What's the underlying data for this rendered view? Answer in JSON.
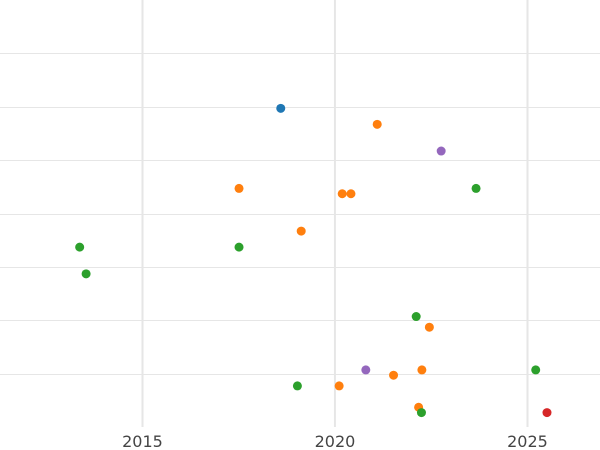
{
  "chart_data": {
    "type": "scatter",
    "title": "",
    "xlabel": "",
    "ylabel": "",
    "grid": true,
    "legend": false,
    "xaxis": {
      "type": "date",
      "range": [
        "2011-04-20",
        "2026-11-20"
      ],
      "ticks": [
        "2015",
        "2020",
        "2025"
      ]
    },
    "yaxis": {
      "range": [
        0,
        8
      ],
      "ticks": [
        1,
        2,
        3,
        4,
        5,
        6,
        7
      ],
      "tick_labels_shown": false
    },
    "series": [
      {
        "color": "#1f77b4",
        "points": [
          {
            "x": "2018-08-05",
            "y": 5.97
          }
        ]
      },
      {
        "color": "#ff7f0e",
        "points": [
          {
            "x": "2021-02-05",
            "y": 5.67
          },
          {
            "x": "2017-07-05",
            "y": 4.47
          },
          {
            "x": "2020-03-10",
            "y": 4.37
          },
          {
            "x": "2020-06-01",
            "y": 4.37
          },
          {
            "x": "2019-02-15",
            "y": 3.67
          },
          {
            "x": "2022-06-15",
            "y": 1.87
          },
          {
            "x": "2022-04-05",
            "y": 1.07
          },
          {
            "x": "2021-07-10",
            "y": 0.97
          },
          {
            "x": "2020-02-10",
            "y": 0.77
          },
          {
            "x": "2022-03-05",
            "y": 0.37
          }
        ]
      },
      {
        "color": "#2ca02c",
        "points": [
          {
            "x": "2023-09-01",
            "y": 4.47
          },
          {
            "x": "2013-05-15",
            "y": 3.37
          },
          {
            "x": "2017-07-05",
            "y": 3.37
          },
          {
            "x": "2013-07-15",
            "y": 2.87
          },
          {
            "x": "2022-02-10",
            "y": 2.07
          },
          {
            "x": "2025-03-20",
            "y": 1.07
          },
          {
            "x": "2019-01-10",
            "y": 0.77
          },
          {
            "x": "2022-04-01",
            "y": 0.27
          }
        ]
      },
      {
        "color": "#9467bd",
        "points": [
          {
            "x": "2022-10-05",
            "y": 5.17
          },
          {
            "x": "2020-10-20",
            "y": 1.07
          }
        ]
      },
      {
        "color": "#d62728",
        "points": [
          {
            "x": "2025-07-05",
            "y": 0.27
          }
        ]
      }
    ]
  }
}
